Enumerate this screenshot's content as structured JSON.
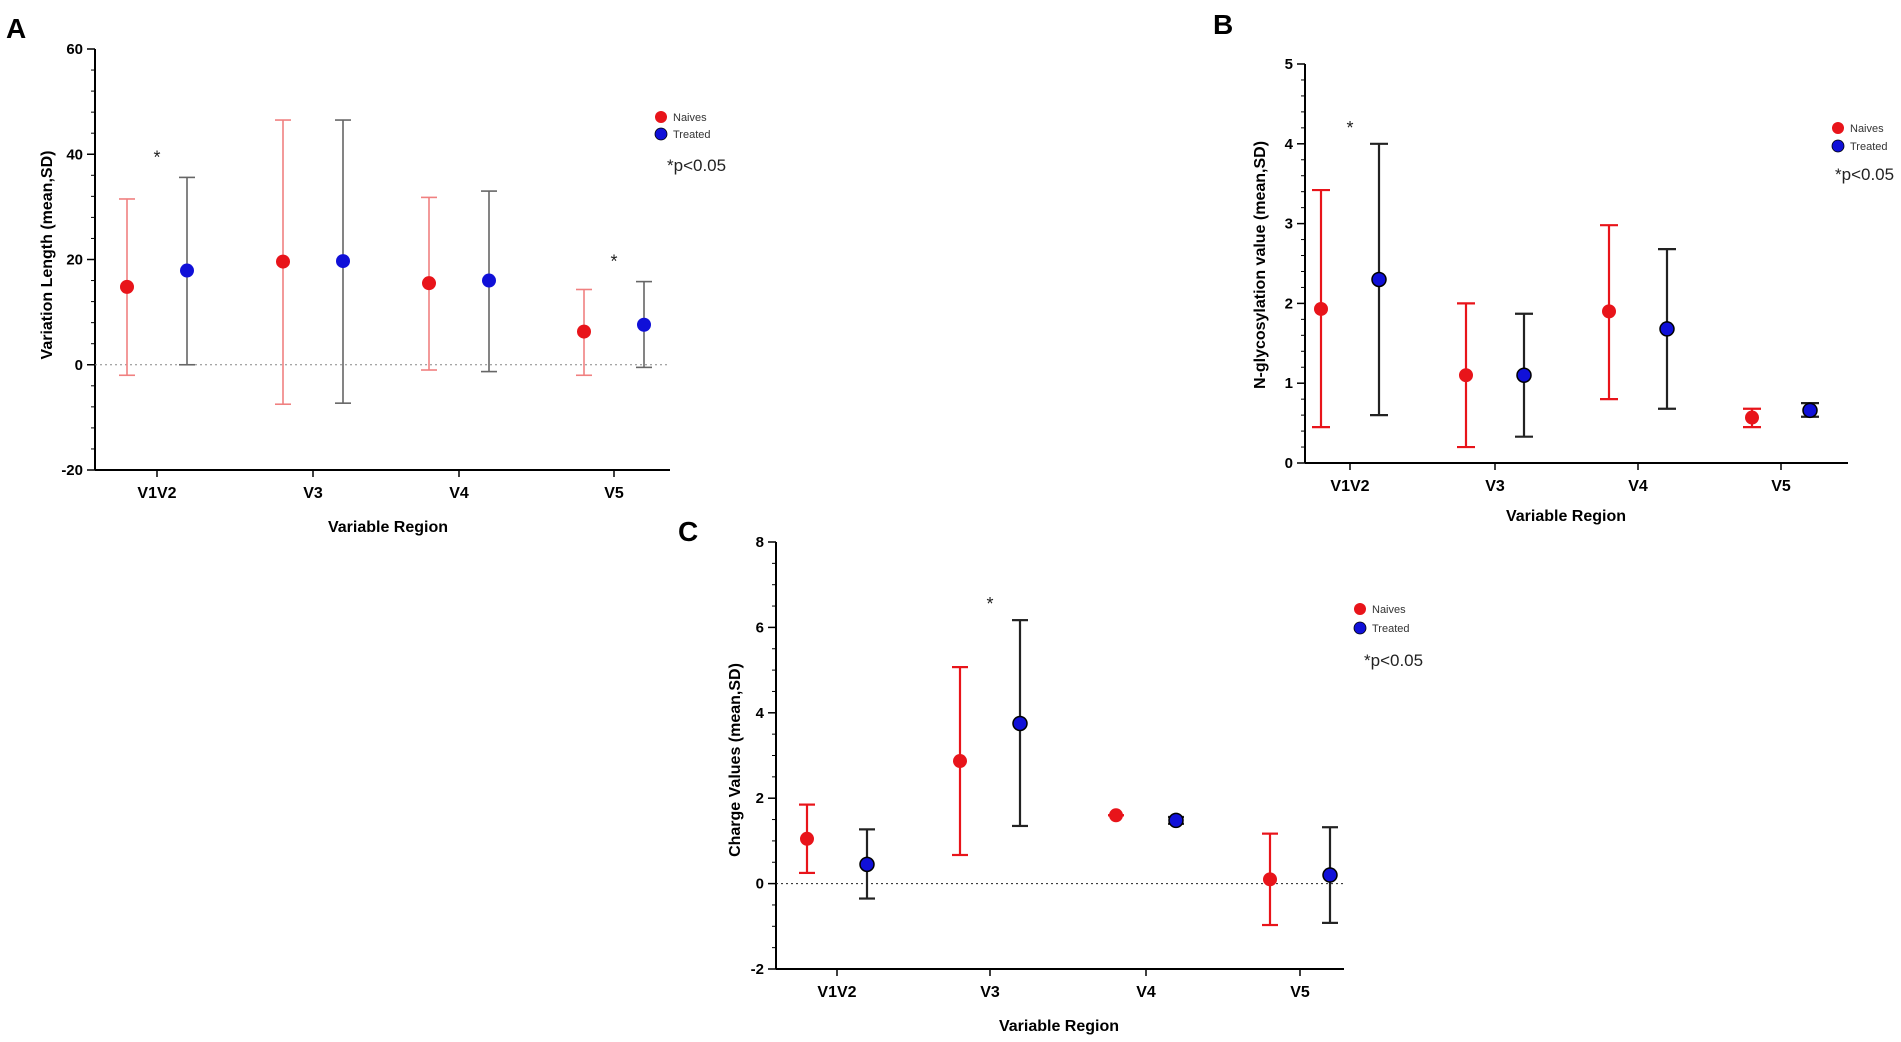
{
  "chart_data": [
    {
      "panel": "A",
      "type": "errorbar",
      "ylabel": "Variation Length (mean,SD)",
      "xlabel": "Variable Region",
      "categories": [
        "V1V2",
        "V3",
        "V4",
        "V5"
      ],
      "ylim": [
        -20,
        60
      ],
      "yticks": [
        -20,
        0,
        20,
        40,
        60
      ],
      "zero_line": true,
      "series": [
        {
          "name": "Naives",
          "color": "#e8141a",
          "whisker_color": "#f08080",
          "mean": [
            14.8,
            19.6,
            15.5,
            6.3
          ],
          "low": [
            -2.0,
            -7.5,
            -1.0,
            -2.0
          ],
          "high": [
            31.5,
            46.5,
            31.8,
            14.3
          ]
        },
        {
          "name": "Treated",
          "color": "#1010d8",
          "whisker_color": "#666666",
          "mean": [
            17.9,
            19.7,
            16.0,
            7.6
          ],
          "low": [
            0.0,
            -7.3,
            -1.3,
            -0.5
          ],
          "high": [
            35.6,
            46.5,
            33.0,
            15.8
          ]
        }
      ],
      "significance": [
        {
          "category": "V1V2",
          "label": "*"
        },
        {
          "category": "V5",
          "label": "*"
        }
      ],
      "legend": [
        "Naives",
        "Treated"
      ],
      "note": "*p<0.05"
    },
    {
      "panel": "B",
      "type": "errorbar",
      "ylabel": "N-glycosylation value (mean,SD)",
      "xlabel": "Variable Region",
      "categories": [
        "V1V2",
        "V3",
        "V4",
        "V5"
      ],
      "ylim": [
        0,
        5
      ],
      "yticks": [
        0,
        1,
        2,
        3,
        4,
        5
      ],
      "zero_line": false,
      "series": [
        {
          "name": "Naives",
          "color": "#e8141a",
          "whisker_color": "#e8141a",
          "mean": [
            1.93,
            1.1,
            1.9,
            0.57
          ],
          "low": [
            0.45,
            0.2,
            0.8,
            0.45
          ],
          "high": [
            3.42,
            2.0,
            2.98,
            0.68
          ]
        },
        {
          "name": "Treated",
          "color": "#1010d8",
          "whisker_color": "#222222",
          "mean": [
            2.3,
            1.1,
            1.68,
            0.66
          ],
          "low": [
            0.6,
            0.33,
            0.68,
            0.58
          ],
          "high": [
            4.0,
            1.87,
            2.68,
            0.75
          ]
        }
      ],
      "significance": [
        {
          "category": "V1V2",
          "label": "*"
        }
      ],
      "legend": [
        "Naives",
        "Treated"
      ],
      "note": "*p<0.05"
    },
    {
      "panel": "C",
      "type": "errorbar",
      "ylabel": "Charge Values (mean,SD)",
      "xlabel": "Variable Region",
      "categories": [
        "V1V2",
        "V3",
        "V4",
        "V5"
      ],
      "ylim": [
        -2,
        8
      ],
      "yticks": [
        -2,
        0,
        2,
        4,
        6,
        8
      ],
      "zero_line": true,
      "series": [
        {
          "name": "Naives",
          "color": "#e8141a",
          "whisker_color": "#e8141a",
          "mean": [
            1.05,
            2.87,
            1.6,
            0.1
          ],
          "low": [
            0.25,
            0.67,
            1.6,
            -0.97
          ],
          "high": [
            1.85,
            5.07,
            1.6,
            1.17
          ]
        },
        {
          "name": "Treated",
          "color": "#1010d8",
          "whisker_color": "#222222",
          "mean": [
            0.45,
            3.75,
            1.48,
            0.2
          ],
          "low": [
            -0.35,
            1.35,
            1.4,
            -0.92
          ],
          "high": [
            1.27,
            6.17,
            1.56,
            1.32
          ]
        }
      ],
      "significance": [
        {
          "category": "V3",
          "label": "*"
        }
      ],
      "legend": [
        "Naives",
        "Treated"
      ],
      "note": "*p<0.05"
    }
  ]
}
